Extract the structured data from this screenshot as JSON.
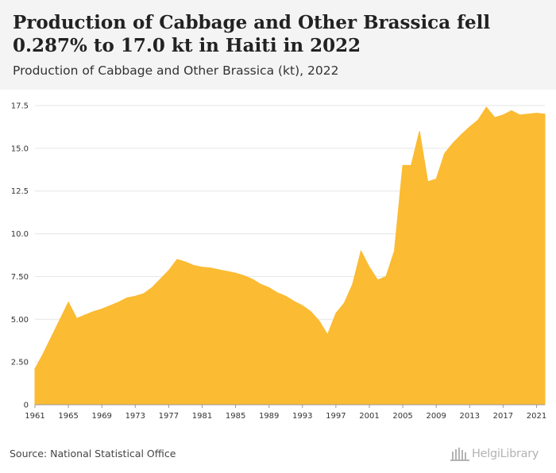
{
  "header": {
    "title": "Production of Cabbage and Other Brassica fell 0.287% to 17.0 kt in Haiti in 2022",
    "subtitle": "Production of Cabbage and Other Brassica (kt), 2022"
  },
  "footer": {
    "source": "Source: National Statistical Office",
    "brand": "HelgiLibrary"
  },
  "colors": {
    "area_fill": "#fbbb33",
    "grid": "#e6e6e6",
    "header_bg": "#f4f4f4"
  },
  "chart_data": {
    "type": "area",
    "xlabel": "",
    "ylabel": "",
    "x": [
      1961,
      1962,
      1963,
      1964,
      1965,
      1966,
      1967,
      1968,
      1969,
      1970,
      1971,
      1972,
      1973,
      1974,
      1975,
      1976,
      1977,
      1978,
      1979,
      1980,
      1981,
      1982,
      1983,
      1984,
      1985,
      1986,
      1987,
      1988,
      1989,
      1990,
      1991,
      1992,
      1993,
      1994,
      1995,
      1996,
      1997,
      1998,
      1999,
      2000,
      2001,
      2002,
      2003,
      2004,
      2005,
      2006,
      2007,
      2008,
      2009,
      2010,
      2011,
      2012,
      2013,
      2014,
      2015,
      2016,
      2017,
      2018,
      2019,
      2020,
      2021,
      2022
    ],
    "values": [
      2.1,
      3.0,
      4.0,
      5.0,
      6.0,
      5.05,
      5.25,
      5.45,
      5.6,
      5.8,
      6.0,
      6.25,
      6.35,
      6.5,
      6.85,
      7.35,
      7.85,
      8.5,
      8.35,
      8.15,
      8.05,
      8.0,
      7.9,
      7.8,
      7.7,
      7.55,
      7.35,
      7.05,
      6.85,
      6.55,
      6.35,
      6.05,
      5.8,
      5.45,
      4.9,
      4.1,
      5.35,
      5.95,
      7.05,
      9.0,
      8.05,
      7.3,
      7.5,
      9.0,
      14.0,
      14.0,
      16.0,
      13.05,
      13.2,
      14.7,
      15.3,
      15.8,
      16.25,
      16.65,
      17.4,
      16.8,
      16.95,
      17.2,
      16.95,
      17.0,
      17.05,
      17.0
    ],
    "y_ticks": [
      "0",
      "2.50",
      "5.00",
      "7.50",
      "10.0",
      "12.5",
      "15.0",
      "17.5"
    ],
    "y_tick_values": [
      0,
      2.5,
      5,
      7.5,
      10,
      12.5,
      15,
      17.5
    ],
    "x_ticks": [
      "1961",
      "1965",
      "1969",
      "1973",
      "1977",
      "1981",
      "1985",
      "1989",
      "1993",
      "1997",
      "2001",
      "2005",
      "2009",
      "2013",
      "2017",
      "2021"
    ],
    "x_tick_values": [
      1961,
      1965,
      1969,
      1973,
      1977,
      1981,
      1985,
      1989,
      1993,
      1997,
      2001,
      2005,
      2009,
      2013,
      2017,
      2021
    ],
    "xlim": [
      1961,
      2022
    ],
    "ylim": [
      0,
      17.5
    ],
    "grid": true,
    "legend": "none"
  }
}
